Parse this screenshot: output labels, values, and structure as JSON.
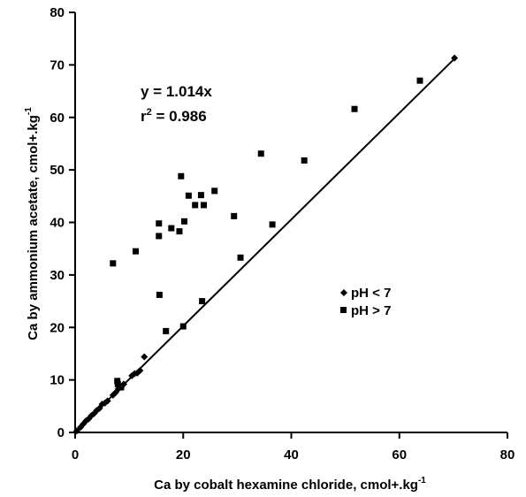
{
  "chart_data": {
    "type": "scatter",
    "title": "",
    "xlabel": "Ca by cobalt hexamine chloride, cmol+.kg",
    "xlabel_sup": "-1",
    "ylabel": "Ca by ammonium acetate, cmol+.kg",
    "ylabel_sup": "-1",
    "xlim": [
      0,
      80
    ],
    "ylim": [
      0,
      80
    ],
    "xticks": [
      "0",
      "20",
      "40",
      "60",
      "80"
    ],
    "yticks": [
      "0",
      "10",
      "20",
      "30",
      "40",
      "50",
      "60",
      "70",
      "80"
    ],
    "xtick_values": [
      0,
      20,
      40,
      60,
      80
    ],
    "ytick_values": [
      0,
      10,
      20,
      30,
      40,
      50,
      60,
      70,
      80
    ],
    "grid": false,
    "legend_position": "right",
    "annotations": {
      "equation": "y = 1.014x",
      "r2_prefix": "r",
      "r2_sup": "2",
      "r2_suffix": " = 0.986"
    },
    "fit_line": {
      "slope": 1.014,
      "x_range": [
        0,
        70.2
      ]
    },
    "series": [
      {
        "name": "pH < 7",
        "marker": "diamond",
        "points": [
          [
            0.3,
            0.3
          ],
          [
            1.0,
            1.0
          ],
          [
            1.5,
            1.6
          ],
          [
            2.0,
            2.2
          ],
          [
            2.5,
            2.6
          ],
          [
            3.0,
            3.2
          ],
          [
            3.5,
            3.6
          ],
          [
            4.0,
            4.2
          ],
          [
            4.5,
            4.6
          ],
          [
            5.0,
            5.4
          ],
          [
            5.5,
            5.6
          ],
          [
            6.0,
            6.0
          ],
          [
            7.0,
            7.1
          ],
          [
            7.5,
            7.6
          ],
          [
            8.0,
            8.3
          ],
          [
            8.5,
            8.6
          ],
          [
            9.0,
            9.2
          ],
          [
            10.5,
            10.8
          ],
          [
            11.0,
            11.2
          ],
          [
            11.5,
            11.3
          ],
          [
            12.0,
            11.8
          ],
          [
            12.8,
            14.4
          ],
          [
            70.2,
            71.3
          ]
        ]
      },
      {
        "name": "pH > 7",
        "marker": "square",
        "points": [
          [
            7.0,
            32.2
          ],
          [
            11.2,
            34.5
          ],
          [
            15.5,
            39.8
          ],
          [
            15.5,
            37.4
          ],
          [
            15.6,
            26.2
          ],
          [
            16.8,
            19.3
          ],
          [
            17.8,
            38.9
          ],
          [
            19.3,
            38.3
          ],
          [
            19.6,
            48.8
          ],
          [
            20.0,
            20.2
          ],
          [
            20.2,
            40.2
          ],
          [
            21.0,
            45.1
          ],
          [
            22.2,
            43.3
          ],
          [
            23.3,
            45.2
          ],
          [
            23.5,
            25.0
          ],
          [
            23.8,
            43.3
          ],
          [
            25.8,
            46.0
          ],
          [
            29.4,
            41.2
          ],
          [
            30.6,
            33.3
          ],
          [
            34.4,
            53.1
          ],
          [
            36.5,
            39.6
          ],
          [
            42.4,
            51.8
          ],
          [
            51.7,
            61.6
          ],
          [
            63.8,
            67.0
          ],
          [
            7.8,
            9.8
          ],
          [
            7.9,
            9.2
          ],
          [
            8.5,
            8.6
          ]
        ]
      }
    ]
  }
}
